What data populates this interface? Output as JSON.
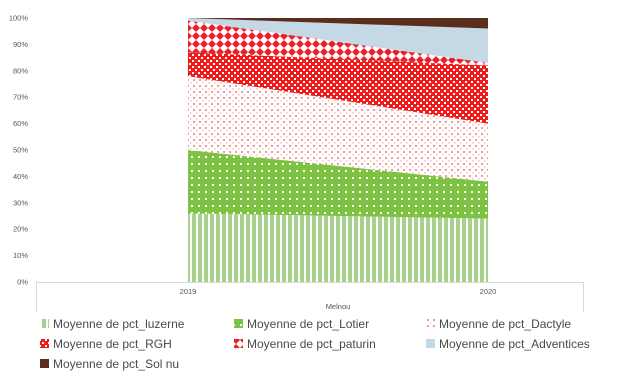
{
  "chart_data": {
    "type": "area",
    "stacked": "percent",
    "categories": [
      "2019",
      "2020"
    ],
    "group_label": "Melnou",
    "yticks": [
      "0%",
      "10%",
      "20%",
      "30%",
      "40%",
      "50%",
      "60%",
      "70%",
      "80%",
      "90%",
      "100%"
    ],
    "ylim": [
      0,
      100
    ],
    "grid": false,
    "legend_position": "bottom",
    "series": [
      {
        "name": "Moyenne de pct_luzerne",
        "values": [
          26,
          24
        ],
        "color": "#a9d18e",
        "pattern": "vertical-stripes"
      },
      {
        "name": "Moyenne de pct_Lotier",
        "values": [
          24,
          14
        ],
        "color": "#7dc242",
        "pattern": "dots"
      },
      {
        "name": "Moyenne de pct_Dactyle",
        "values": [
          28,
          22
        ],
        "color": "#f19a9a",
        "pattern": "light-dots"
      },
      {
        "name": "Moyenne de pct_RGH",
        "values": [
          9,
          22
        ],
        "color": "#f01a1a",
        "pattern": "checker"
      },
      {
        "name": "Moyenne de pct_paturin",
        "values": [
          12,
          1
        ],
        "color": "#e8202a",
        "pattern": "diamonds"
      },
      {
        "name": "Moyenne de pct_Adventices",
        "values": [
          1,
          13
        ],
        "color": "#c5d8e6",
        "pattern": "solid"
      },
      {
        "name": "Moyenne de pct_Sol nu",
        "values": [
          0,
          4
        ],
        "color": "#5a2d1c",
        "pattern": "solid"
      }
    ]
  }
}
